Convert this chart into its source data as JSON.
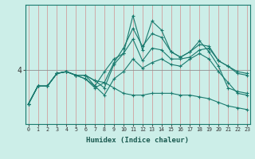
{
  "xlabel": "Humidex (Indice chaleur)",
  "bg_color": "#cceee8",
  "line_color": "#1a7a6e",
  "grid_color": "#c0d8d0",
  "x_values": [
    0,
    1,
    2,
    3,
    4,
    5,
    6,
    7,
    8,
    9,
    10,
    11,
    12,
    13,
    14,
    15,
    16,
    17,
    18,
    19,
    20,
    21,
    22,
    23
  ],
  "series": [
    [
      3.05,
      3.55,
      3.55,
      3.9,
      3.95,
      3.85,
      3.85,
      3.7,
      3.5,
      4.15,
      4.45,
      5.5,
      4.55,
      5.35,
      5.1,
      4.5,
      4.35,
      4.5,
      4.8,
      4.5,
      4.1,
      3.5,
      3.4,
      3.35
    ],
    [
      3.05,
      3.55,
      3.55,
      3.9,
      3.95,
      3.85,
      3.85,
      3.7,
      3.65,
      4.2,
      4.6,
      5.15,
      4.65,
      5.0,
      4.9,
      4.5,
      4.35,
      4.5,
      4.7,
      4.65,
      4.25,
      4.1,
      3.9,
      3.85
    ],
    [
      3.05,
      3.55,
      3.55,
      3.9,
      3.95,
      3.85,
      3.85,
      3.55,
      3.95,
      4.3,
      4.45,
      4.85,
      4.25,
      4.6,
      4.55,
      4.3,
      4.3,
      4.35,
      4.55,
      4.6,
      4.25,
      4.1,
      3.95,
      3.9
    ],
    [
      3.05,
      3.55,
      3.55,
      3.9,
      3.95,
      3.85,
      3.75,
      3.55,
      3.3,
      3.75,
      3.95,
      4.3,
      4.05,
      4.2,
      4.3,
      4.15,
      4.1,
      4.3,
      4.45,
      4.3,
      3.95,
      3.65,
      3.35,
      3.3
    ],
    [
      3.05,
      3.55,
      3.55,
      3.9,
      3.95,
      3.85,
      3.75,
      3.5,
      3.65,
      3.5,
      3.35,
      3.3,
      3.3,
      3.35,
      3.35,
      3.35,
      3.3,
      3.3,
      3.25,
      3.2,
      3.1,
      3.0,
      2.95,
      2.9
    ]
  ],
  "hline_y": 4.0,
  "xlim": [
    -0.3,
    23.3
  ],
  "ylim": [
    2.5,
    5.8
  ],
  "yticks": [
    4
  ],
  "xticks": [
    0,
    1,
    2,
    3,
    4,
    5,
    6,
    7,
    8,
    9,
    10,
    11,
    12,
    13,
    14,
    15,
    16,
    17,
    18,
    19,
    20,
    21,
    22,
    23
  ]
}
